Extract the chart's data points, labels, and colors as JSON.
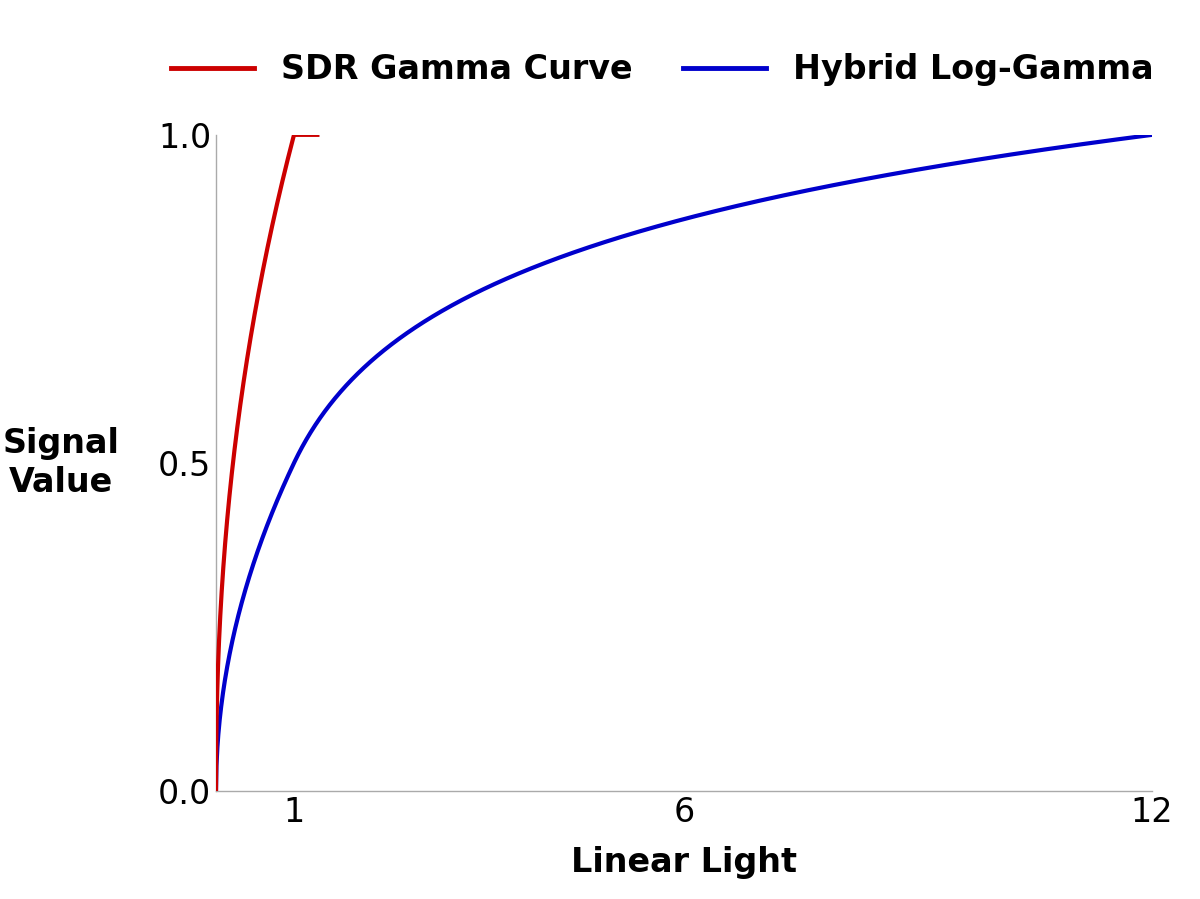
{
  "xlabel": "Linear Light",
  "ylabel": "Signal\nValue",
  "xlim": [
    0,
    12
  ],
  "ylim": [
    0,
    1
  ],
  "xticks": [
    1,
    6,
    12
  ],
  "yticks": [
    0,
    0.5,
    1
  ],
  "sdr_color": "#cc0000",
  "hlg_color": "#0000cc",
  "sdr_label": "SDR Gamma Curve",
  "hlg_label": "Hybrid Log-Gamma",
  "linewidth": 3.0,
  "background_color": "#ffffff",
  "legend_fontsize": 24,
  "axis_fontsize": 24,
  "tick_fontsize": 24
}
